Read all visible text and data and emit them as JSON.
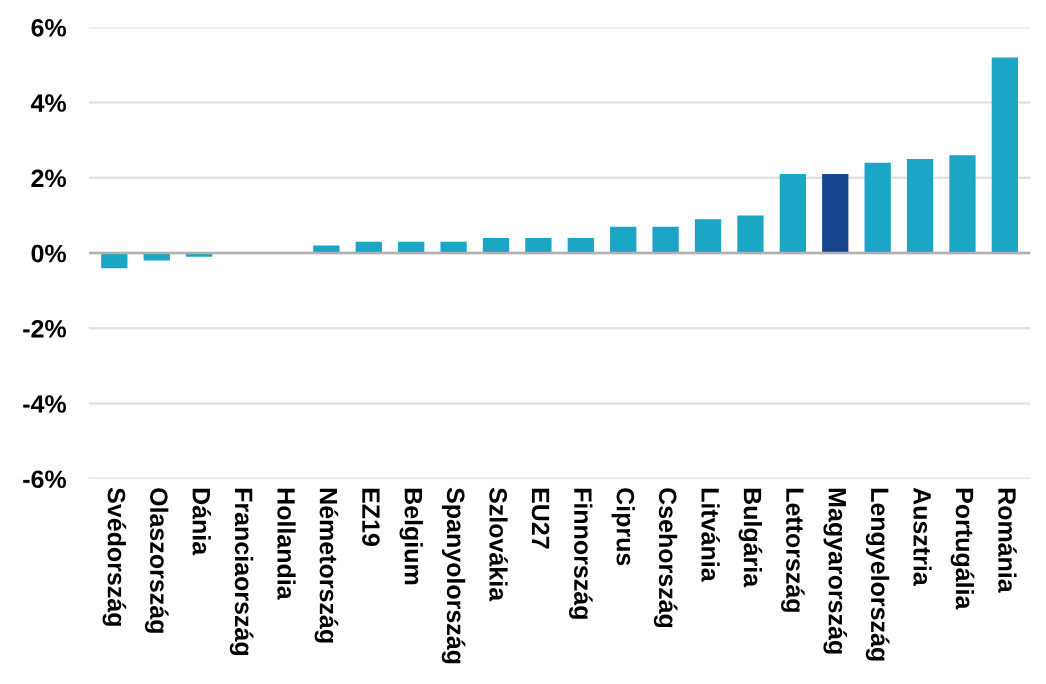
{
  "chart_data": {
    "type": "bar",
    "categories": [
      "Svédország",
      "Olaszország",
      "Dánia",
      "Franciaország",
      "Hollandia",
      "Németország",
      "EZ19",
      "Belgium",
      "Spanyolország",
      "Szlovákia",
      "EU27",
      "Finnország",
      "Ciprus",
      "Csehország",
      "Litvánia",
      "Bulgária",
      "Lettország",
      "Magyarország",
      "Lengyelország",
      "Ausztria",
      "Portugália",
      "Románia"
    ],
    "values": [
      -0.4,
      -0.2,
      -0.1,
      0,
      0,
      0.2,
      0.3,
      0.3,
      0.3,
      0.4,
      0.4,
      0.4,
      0.7,
      0.7,
      0.9,
      1.0,
      2.1,
      2.1,
      2.4,
      2.5,
      2.6,
      5.2
    ],
    "colors": [
      "#1aa6c4",
      "#1aa6c4",
      "#1aa6c4",
      "#1aa6c4",
      "#1aa6c4",
      "#1aa6c4",
      "#1aa6c4",
      "#1aa6c4",
      "#1aa6c4",
      "#1aa6c4",
      "#1aa6c4",
      "#1aa6c4",
      "#1aa6c4",
      "#1aa6c4",
      "#1aa6c4",
      "#1aa6c4",
      "#1aa6c4",
      "#17468e",
      "#1aa6c4",
      "#1aa6c4",
      "#1aa6c4",
      "#1aa6c4"
    ],
    "ylim": [
      -6,
      6
    ],
    "yticks": [
      {
        "value": -6,
        "label": "-6%"
      },
      {
        "value": -4,
        "label": "-4%"
      },
      {
        "value": -2,
        "label": "-2%"
      },
      {
        "value": 0,
        "label": "0%"
      },
      {
        "value": 2,
        "label": "2%"
      },
      {
        "value": 4,
        "label": "4%"
      },
      {
        "value": 6,
        "label": "6%"
      }
    ],
    "grid": "y"
  }
}
